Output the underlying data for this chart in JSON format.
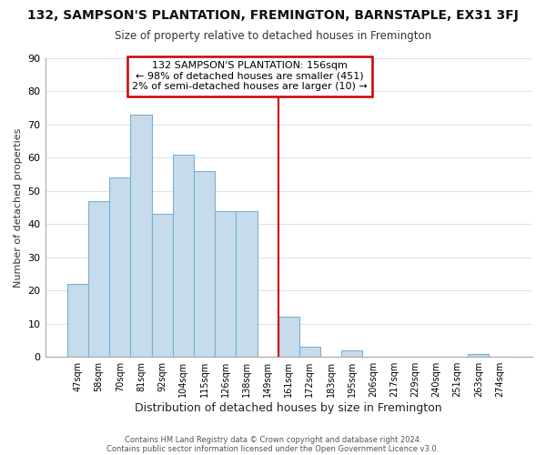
{
  "title": "132, SAMPSON'S PLANTATION, FREMINGTON, BARNSTAPLE, EX31 3FJ",
  "subtitle": "Size of property relative to detached houses in Fremington",
  "xlabel": "Distribution of detached houses by size in Fremington",
  "ylabel": "Number of detached properties",
  "bar_labels": [
    "47sqm",
    "58sqm",
    "70sqm",
    "81sqm",
    "92sqm",
    "104sqm",
    "115sqm",
    "126sqm",
    "138sqm",
    "149sqm",
    "161sqm",
    "172sqm",
    "183sqm",
    "195sqm",
    "206sqm",
    "217sqm",
    "229sqm",
    "240sqm",
    "251sqm",
    "263sqm",
    "274sqm"
  ],
  "bar_values": [
    22,
    47,
    54,
    73,
    43,
    61,
    56,
    44,
    44,
    0,
    12,
    3,
    0,
    2,
    0,
    0,
    0,
    0,
    0,
    1,
    0
  ],
  "bar_color": "#c6dcec",
  "bar_edge_color": "#7aafd4",
  "vline_color": "#cc0000",
  "vline_x": 9.5,
  "ylim": [
    0,
    90
  ],
  "yticks": [
    0,
    10,
    20,
    30,
    40,
    50,
    60,
    70,
    80,
    90
  ],
  "annotation_title": "132 SAMPSON'S PLANTATION: 156sqm",
  "annotation_line1": "← 98% of detached houses are smaller (451)",
  "annotation_line2": "2% of semi-detached houses are larger (10) →",
  "footer1": "Contains HM Land Registry data © Crown copyright and database right 2024.",
  "footer2": "Contains public sector information licensed under the Open Government Licence v3.0.",
  "background_color": "#ffffff",
  "plot_background_color": "#ffffff",
  "grid_color": "#d8e4f0"
}
